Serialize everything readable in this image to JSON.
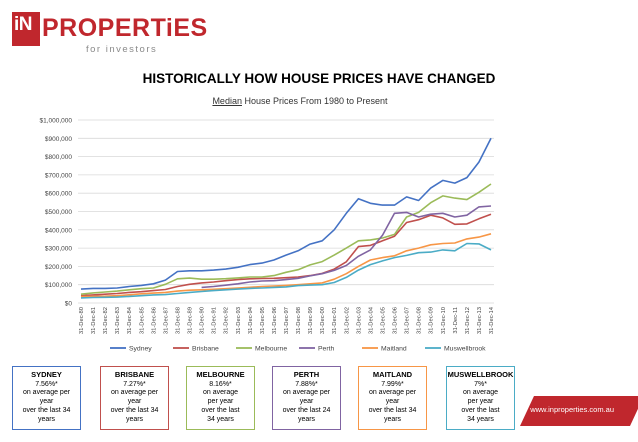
{
  "logo": {
    "in": "iN",
    "name": "PROPERTiES",
    "tagline": "for investors"
  },
  "page_title": "HISTORICALLY HOW HOUSE PRICES HAVE CHANGED",
  "website": "www.inproperties.com.au",
  "colors": {
    "brand": "#c0272d"
  },
  "chart_data": {
    "type": "line",
    "title": "Median House Prices From 1980 to Present",
    "title_underlined": "Median",
    "title_rest": " House Prices From 1980 to Present",
    "xlabel": "",
    "ylabel": "",
    "ylim": [
      0,
      1000000
    ],
    "yticks": [
      0,
      100000,
      200000,
      300000,
      400000,
      500000,
      600000,
      700000,
      800000,
      900000,
      1000000
    ],
    "ytick_labels": [
      "$0",
      "$100,000",
      "$200,000",
      "$300,000",
      "$400,000",
      "$500,000",
      "$600,000",
      "$700,000",
      "$800,000",
      "$900,000",
      "$1,000,000"
    ],
    "grid": true,
    "legend_position": "bottom",
    "x": [
      "31-Dec-80",
      "31-Dec-81",
      "31-Dec-82",
      "31-Dec-83",
      "31-Dec-84",
      "31-Dec-85",
      "31-Dec-86",
      "31-Dec-87",
      "31-Dec-88",
      "31-Dec-89",
      "31-Dec-90",
      "31-Dec-91",
      "31-Dec-92",
      "31-Dec-93",
      "31-Dec-94",
      "31-Dec-95",
      "31-Dec-96",
      "31-Dec-97",
      "31-Dec-98",
      "31-Dec-99",
      "31-Dec-00",
      "31-Dec-01",
      "31-Dec-02",
      "31-Dec-03",
      "31-Dec-04",
      "31-Dec-05",
      "31-Dec-06",
      "31-Dec-07",
      "31-Dec-08",
      "31-Dec-09",
      "31-Dec-10",
      "31-Dec-11",
      "31-Dec-12",
      "31-Dec-13",
      "31-Dec-14"
    ],
    "series": [
      {
        "name": "Sydney",
        "color": "#4472c4",
        "values": [
          76000,
          80000,
          80000,
          82000,
          90000,
          96000,
          105000,
          125000,
          172000,
          176000,
          176000,
          180000,
          185000,
          195000,
          210000,
          218000,
          235000,
          262000,
          285000,
          322000,
          340000,
          400000,
          490000,
          570000,
          545000,
          535000,
          535000,
          580000,
          560000,
          628000,
          670000,
          655000,
          685000,
          770000,
          900000
        ]
      },
      {
        "name": "Brisbane",
        "color": "#c0504d",
        "values": [
          40000,
          44000,
          48000,
          52000,
          58000,
          62000,
          68000,
          74000,
          90000,
          102000,
          110000,
          115000,
          122000,
          128000,
          132000,
          134000,
          135000,
          138000,
          142000,
          150000,
          162000,
          185000,
          225000,
          308000,
          315000,
          340000,
          365000,
          440000,
          455000,
          480000,
          465000,
          430000,
          432000,
          460000,
          485000
        ]
      },
      {
        "name": "Melbourne",
        "color": "#9bbb59",
        "values": [
          48000,
          55000,
          60000,
          65000,
          72000,
          78000,
          82000,
          102000,
          132000,
          136000,
          130000,
          130000,
          133000,
          137000,
          142000,
          142000,
          150000,
          168000,
          182000,
          208000,
          226000,
          262000,
          300000,
          340000,
          345000,
          355000,
          375000,
          470000,
          495000,
          548000,
          585000,
          573000,
          565000,
          605000,
          650000
        ]
      },
      {
        "name": "Perth",
        "color": "#8064a2",
        "values": [
          null,
          null,
          null,
          null,
          null,
          null,
          null,
          null,
          null,
          null,
          85000,
          90000,
          97000,
          105000,
          115000,
          120000,
          122000,
          128000,
          135000,
          148000,
          160000,
          178000,
          205000,
          255000,
          290000,
          370000,
          490000,
          495000,
          470000,
          485000,
          490000,
          470000,
          480000,
          525000,
          530000
        ]
      },
      {
        "name": "Maitland",
        "color": "#f79646",
        "values": [
          35000,
          36000,
          37000,
          40000,
          45000,
          50000,
          54000,
          58000,
          65000,
          70000,
          72000,
          75000,
          78000,
          82000,
          86000,
          90000,
          93000,
          96000,
          100000,
          105000,
          110000,
          130000,
          160000,
          200000,
          235000,
          248000,
          258000,
          285000,
          300000,
          318000,
          325000,
          328000,
          350000,
          360000,
          378000
        ]
      },
      {
        "name": "Muswellbrook",
        "color": "#4bacc6",
        "values": [
          28000,
          30000,
          31000,
          32000,
          36000,
          40000,
          44000,
          46000,
          52000,
          58000,
          63000,
          68000,
          72000,
          76000,
          80000,
          82000,
          85000,
          88000,
          95000,
          98000,
          100000,
          112000,
          140000,
          180000,
          210000,
          230000,
          248000,
          260000,
          275000,
          278000,
          290000,
          285000,
          325000,
          323000,
          290000
        ]
      }
    ]
  },
  "city_boxes": [
    {
      "name": "SYDNEY",
      "rate": "7.56%*",
      "lines": [
        "on average per",
        "year",
        "over the last 34",
        "years"
      ],
      "color": "#4472c4"
    },
    {
      "name": "BRISBANE",
      "rate": "7.27%*",
      "lines": [
        "on average per",
        "year",
        "over the last 34",
        "years"
      ],
      "color": "#c0504d"
    },
    {
      "name": "MELBOURNE",
      "rate": "8.16%*",
      "lines": [
        "on average",
        "per year",
        "over the last",
        "34 years"
      ],
      "color": "#9bbb59"
    },
    {
      "name": "PERTH",
      "rate": "7.88%*",
      "lines": [
        "on average per",
        "year",
        "over the last 24",
        "years"
      ],
      "color": "#8064a2"
    },
    {
      "name": "MAITLAND",
      "rate": "7.99%*",
      "lines": [
        "on average per",
        "year",
        "over the last 34",
        "years"
      ],
      "color": "#f79646"
    },
    {
      "name": "MUSWELLBROOK",
      "rate": "7%*",
      "lines": [
        "on average",
        "per year",
        "over the last",
        "34 years"
      ],
      "color": "#4bacc6"
    }
  ]
}
